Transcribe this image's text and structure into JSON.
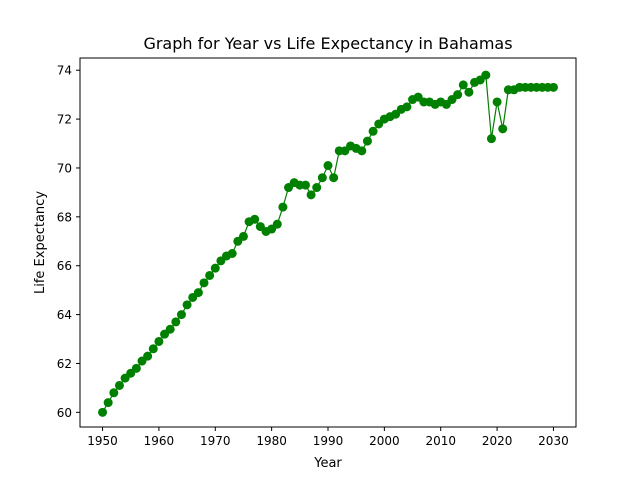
{
  "chart_data": {
    "type": "line",
    "title": "Graph for Year vs Life Expectancy in Bahamas",
    "xlabel": "Year",
    "ylabel": "Life Expectancy",
    "xlim": [
      1946,
      2034
    ],
    "ylim": [
      59.4,
      74.5
    ],
    "xticks": [
      1950,
      1960,
      1970,
      1980,
      1990,
      2000,
      2010,
      2020,
      2030
    ],
    "yticks": [
      60,
      62,
      64,
      66,
      68,
      70,
      72,
      74
    ],
    "grid": false,
    "legend": "none",
    "series": [
      {
        "color": "#008000",
        "marker": "circle",
        "x": [
          1950,
          1951,
          1952,
          1953,
          1954,
          1955,
          1956,
          1957,
          1958,
          1959,
          1960,
          1961,
          1962,
          1963,
          1964,
          1965,
          1966,
          1967,
          1968,
          1969,
          1970,
          1971,
          1972,
          1973,
          1974,
          1975,
          1976,
          1977,
          1978,
          1979,
          1980,
          1981,
          1982,
          1983,
          1984,
          1985,
          1986,
          1987,
          1988,
          1989,
          1990,
          1991,
          1992,
          1993,
          1994,
          1995,
          1996,
          1997,
          1998,
          1999,
          2000,
          2001,
          2002,
          2003,
          2004,
          2005,
          2006,
          2007,
          2008,
          2009,
          2010,
          2011,
          2012,
          2013,
          2014,
          2015,
          2016,
          2017,
          2018,
          2019,
          2020,
          2021,
          2022,
          2023,
          2024,
          2025,
          2026,
          2027,
          2028,
          2029,
          2030
        ],
        "y": [
          60.0,
          60.4,
          60.8,
          61.1,
          61.4,
          61.6,
          61.8,
          62.1,
          62.3,
          62.6,
          62.9,
          63.2,
          63.4,
          63.7,
          64.0,
          64.4,
          64.7,
          64.9,
          65.3,
          65.6,
          65.9,
          66.2,
          66.4,
          66.5,
          67.0,
          67.2,
          67.8,
          67.9,
          67.6,
          67.4,
          67.5,
          67.7,
          68.4,
          69.2,
          69.4,
          69.3,
          69.3,
          68.9,
          69.2,
          69.6,
          70.1,
          69.6,
          70.7,
          70.7,
          70.9,
          70.8,
          70.7,
          71.1,
          71.5,
          71.8,
          72.0,
          72.1,
          72.2,
          72.4,
          72.5,
          72.8,
          72.9,
          72.7,
          72.7,
          72.6,
          72.7,
          72.6,
          72.8,
          73.0,
          73.4,
          73.1,
          73.5,
          73.6,
          73.8,
          71.2,
          72.7,
          71.6,
          73.2,
          73.2,
          73.3,
          73.3,
          73.3,
          73.3,
          73.3,
          73.3,
          73.3
        ]
      }
    ]
  }
}
